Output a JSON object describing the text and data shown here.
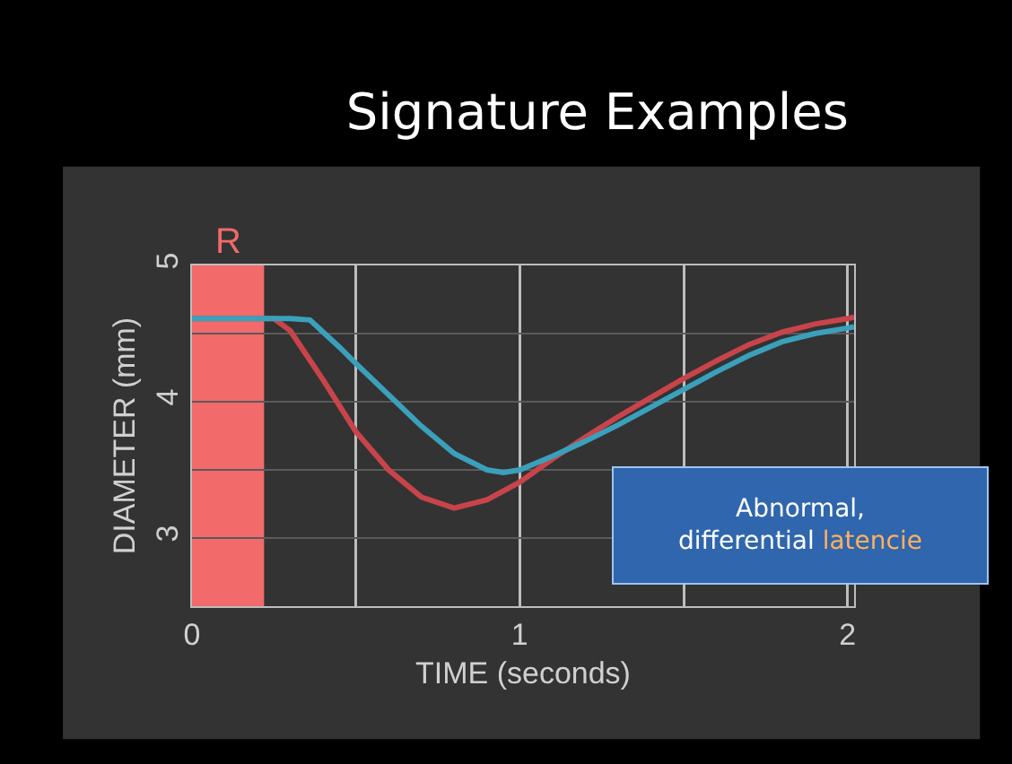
{
  "chart_data": {
    "type": "line",
    "title": "Signature Examples",
    "xlabel": "TIME (seconds)",
    "ylabel": "DIAMETER (mm)",
    "annotations": [
      "Abnormal,",
      "differential",
      "latencie"
    ],
    "series": [
      {
        "color": "#c8444a",
        "x": [
          0,
          0.25,
          0.3,
          0.4,
          0.5,
          0.6,
          0.7,
          0.8,
          0.9,
          1.0,
          1.1,
          1.2,
          1.3,
          1.4,
          1.5,
          1.6,
          1.7,
          1.8,
          1.9,
          2.0,
          2.02
        ],
        "values": [
          4.61,
          4.61,
          4.52,
          4.16,
          3.78,
          3.5,
          3.3,
          3.22,
          3.28,
          3.41,
          3.58,
          3.74,
          3.89,
          4.03,
          4.17,
          4.3,
          4.42,
          4.51,
          4.57,
          4.61,
          4.62
        ]
      },
      {
        "color": "#3aa0bb",
        "x": [
          0,
          0.3,
          0.36,
          0.45,
          0.5,
          0.6,
          0.7,
          0.8,
          0.9,
          0.95,
          1.0,
          1.1,
          1.2,
          1.3,
          1.4,
          1.5,
          1.6,
          1.7,
          1.8,
          1.9,
          2.0,
          2.02
        ],
        "values": [
          4.61,
          4.61,
          4.6,
          4.4,
          4.28,
          4.05,
          3.82,
          3.62,
          3.5,
          3.48,
          3.5,
          3.6,
          3.71,
          3.83,
          3.96,
          4.09,
          4.22,
          4.34,
          4.44,
          4.5,
          4.54,
          4.55
        ]
      }
    ],
    "bands": [
      {
        "axis": "x",
        "from": 0,
        "to": 0.22,
        "label": "R",
        "color": "#f26a6a"
      }
    ],
    "xlim": [
      0,
      2.02
    ],
    "xticks": [
      0,
      {
        "value": 0.5,
        "label": null
      },
      1,
      {
        "value": 1.5,
        "label": null
      },
      2
    ],
    "ylim": [
      2.5,
      5
    ],
    "yticks": [
      {
        "value": 3,
        "label": "3"
      },
      {
        "value": 3.5,
        "label": null
      },
      4,
      {
        "value": 4.5,
        "label": null
      },
      5
    ],
    "grid": true,
    "marker": "none",
    "line_style": "solid"
  }
}
